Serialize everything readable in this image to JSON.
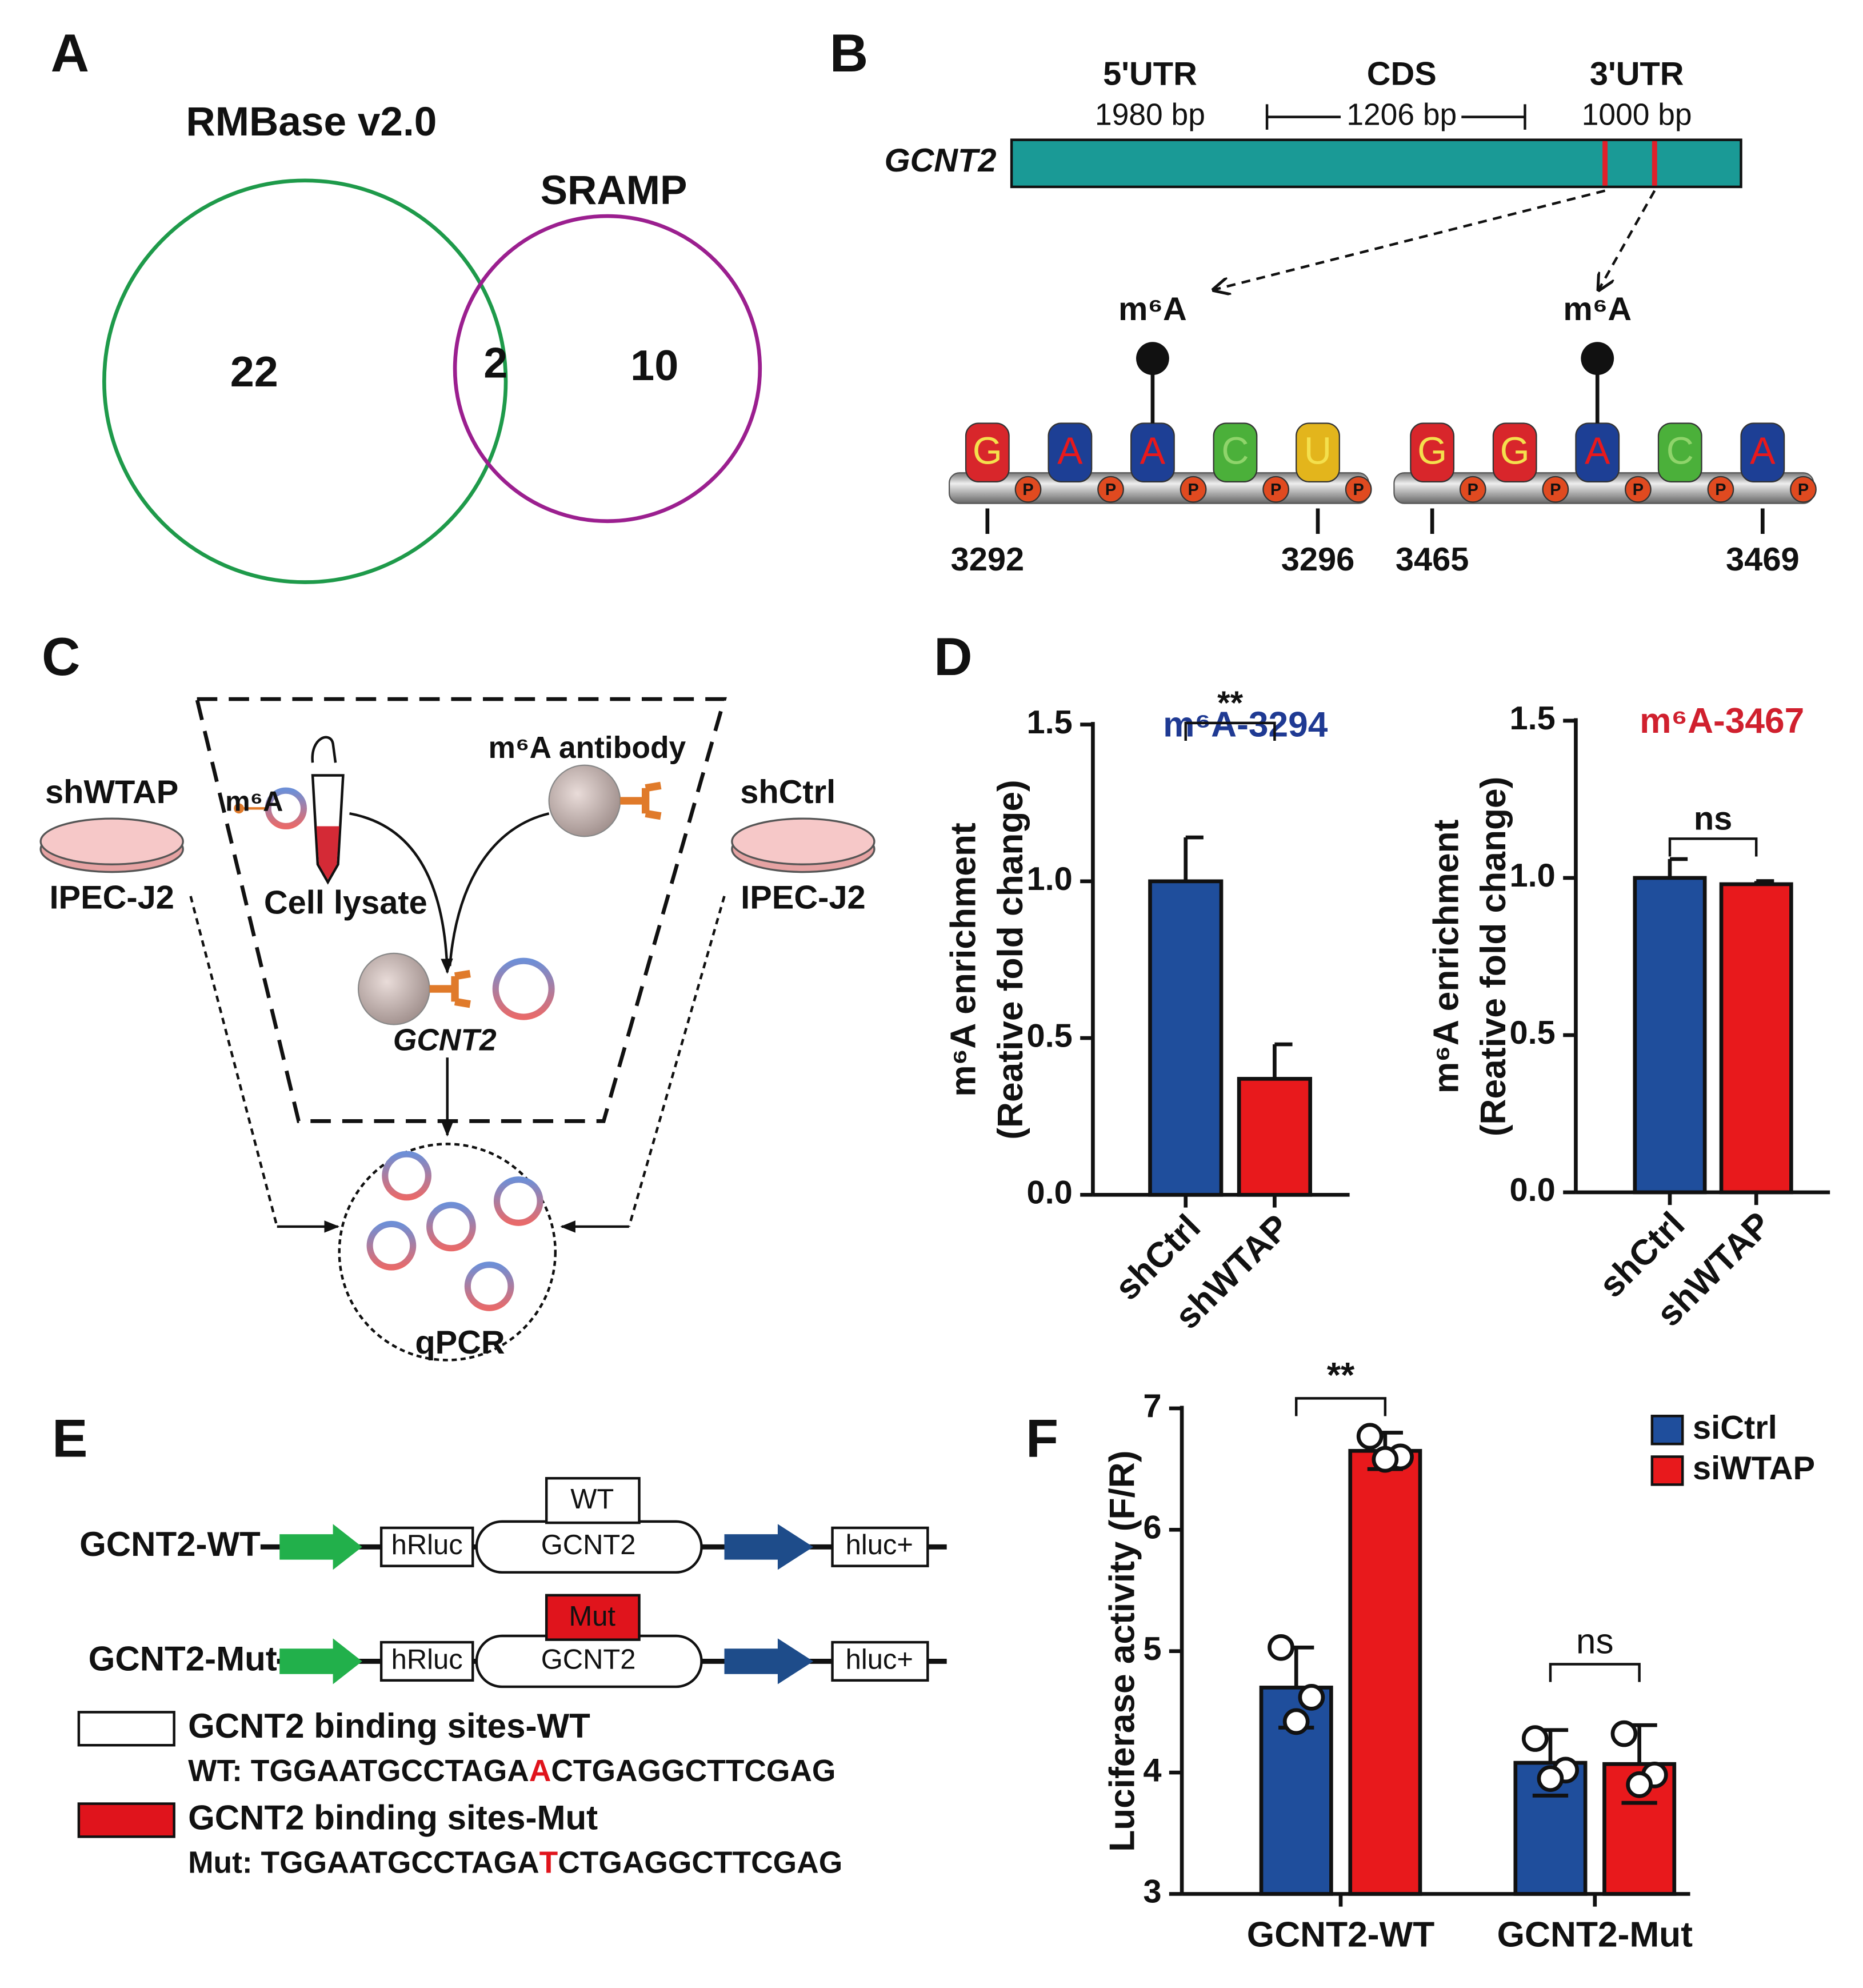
{
  "panel_labels": [
    "A",
    "B",
    "C",
    "D",
    "E",
    "F"
  ],
  "venn": {
    "sets": [
      {
        "name": "RMBase v2.0",
        "color": "#1e9a4a"
      },
      {
        "name": "SRAMP",
        "color": "#9b1f8f"
      }
    ],
    "only_first": "22",
    "overlap": "2",
    "only_second": "10"
  },
  "gene": {
    "name": "GCNT2",
    "regions": [
      {
        "name": "5'UTR",
        "length": "1980 bp"
      },
      {
        "name": "CDS",
        "length": "1206 bp"
      },
      {
        "name": "3'UTR",
        "length": "1000 bp"
      }
    ],
    "phosphate": "P",
    "sites": [
      {
        "label": "m⁶A",
        "bases": [
          "G",
          "A",
          "A",
          "C",
          "U"
        ],
        "start": "3292",
        "end": "3296"
      },
      {
        "label": "m⁶A",
        "bases": [
          "G",
          "G",
          "A",
          "C",
          "A"
        ],
        "start": "3465",
        "end": "3469"
      }
    ]
  },
  "schematic": {
    "left": {
      "name": "shWTAP",
      "cells": "IPEC-J2"
    },
    "right": {
      "name": "shCtrl",
      "cells": "IPEC-J2"
    },
    "modification": "m⁶A",
    "lysate": "Cell lysate",
    "antibody": "m⁶A antibody",
    "target": "GCNT2",
    "assay": "qPCR"
  },
  "constructs": {
    "rows": [
      {
        "name": "GCNT2-WT",
        "site": "WT"
      },
      {
        "name": "GCNT2-Mut",
        "site": "Mut"
      }
    ],
    "parts": [
      "hRluc",
      "GCNT2",
      "hluc+"
    ],
    "legend": [
      {
        "label": "GCNT2 binding sites-WT",
        "sequence": [
          "WT: TGGAATGCCTAGA",
          "A",
          "CTGAGGCTTCGAG"
        ]
      },
      {
        "label": "GCNT2 binding sites-Mut",
        "sequence": [
          "Mut: TGGAATGCCTAGA",
          "T",
          "CTGAGGCTTCGAG"
        ]
      }
    ]
  },
  "chart_data": [
    {
      "type": "bar",
      "title": "m⁶A-3294",
      "title_color": "#1f3a93",
      "ylabel": [
        "m⁶A enrichment",
        "(Reative fold change)"
      ],
      "categories": [
        "shCtrl",
        "shWTAP"
      ],
      "values": [
        1.0,
        0.37
      ],
      "errors": [
        0.14,
        0.11
      ],
      "colors": [
        "#1f4e9c",
        "#e8191c"
      ],
      "ylim": [
        0,
        1.5
      ],
      "yticks": [
        {
          "value": 0,
          "label": "0.0"
        },
        0.5,
        {
          "value": 1,
          "label": "1.0"
        },
        1.5
      ],
      "annotations": [
        "**"
      ]
    },
    {
      "type": "bar",
      "title": "m⁶A-3467",
      "title_color": "#d0202e",
      "ylabel": [
        "m⁶A enrichment",
        "(Reative fold change)"
      ],
      "categories": [
        "shCtrl",
        "shWTAP"
      ],
      "values": [
        1.0,
        0.98
      ],
      "errors": [
        0.06,
        0.01
      ],
      "colors": [
        "#1f4e9c",
        "#e8191c"
      ],
      "ylim": [
        0,
        1.5
      ],
      "yticks": [
        {
          "value": 0,
          "label": "0.0"
        },
        0.5,
        {
          "value": 1,
          "label": "1.0"
        },
        1.5
      ],
      "annotations": [
        "ns"
      ]
    },
    {
      "type": "bar",
      "ylabel": "Luciferase activity (F/R)",
      "categories": [
        "GCNT2-WT",
        "GCNT2-Mut"
      ],
      "series": [
        {
          "name": "siCtrl",
          "color": "#1f4e9c",
          "values": [
            4.7,
            4.08
          ],
          "errors": [
            0.33,
            0.27
          ],
          "points": [
            [
              5.03,
              4.62,
              4.42
            ],
            [
              4.28,
              4.02,
              3.95
            ]
          ]
        },
        {
          "name": "siWTAP",
          "color": "#e8191c",
          "values": [
            6.65,
            4.07
          ],
          "errors": [
            0.15,
            0.32
          ],
          "points": [
            [
              6.77,
              6.6,
              6.58
            ],
            [
              4.32,
              3.98,
              3.9
            ]
          ]
        }
      ],
      "ylim": [
        3,
        7
      ],
      "yticks": [
        3,
        4,
        5,
        6,
        7
      ],
      "legend": "upper right",
      "annotations": [
        "**",
        "ns"
      ]
    }
  ]
}
